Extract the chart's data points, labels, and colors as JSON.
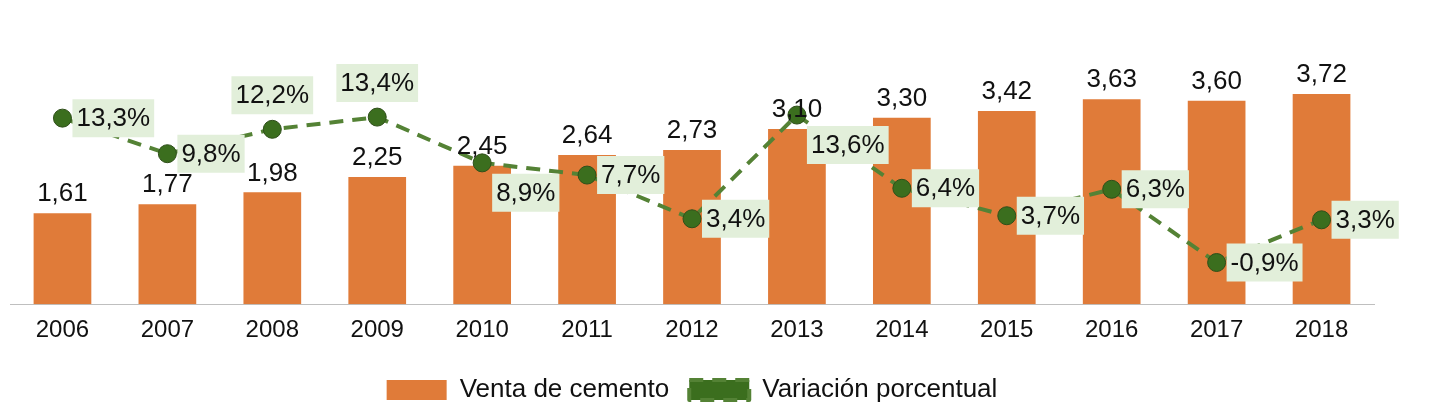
{
  "chart_data": {
    "type": "bar",
    "categories": [
      "2006",
      "2007",
      "2008",
      "2009",
      "2010",
      "2011",
      "2012",
      "2013",
      "2014",
      "2015",
      "2016",
      "2017",
      "2018"
    ],
    "series": [
      {
        "name": "Venta de cemento",
        "color": "#e07b39",
        "values": [
          1.61,
          1.77,
          1.98,
          2.25,
          2.45,
          2.64,
          2.73,
          3.1,
          3.3,
          3.42,
          3.63,
          3.6,
          3.72
        ],
        "value_labels": [
          "1,61",
          "1,77",
          "1,98",
          "2,25",
          "2,45",
          "2,64",
          "2,73",
          "3,10",
          "3,30",
          "3,42",
          "3,63",
          "3,60",
          "3,72"
        ]
      },
      {
        "name": "Variación porcentual",
        "type": "line",
        "axis": "y2",
        "color": "#548235",
        "line_style": "dashed",
        "marker": "circle",
        "values": [
          13.3,
          9.8,
          12.2,
          13.4,
          8.9,
          7.7,
          3.4,
          13.6,
          6.4,
          3.7,
          6.3,
          -0.9,
          3.3
        ],
        "value_labels": [
          "13,3%",
          "9,8%",
          "12,2%",
          "13,4%",
          "8,9%",
          "7,7%",
          "3,4%",
          "13,6%",
          "6,4%",
          "3,7%",
          "6,3%",
          "-0,9%",
          "3,3%"
        ]
      }
    ],
    "tick_labels": "x",
    "grid": false,
    "legend": "bottom"
  }
}
